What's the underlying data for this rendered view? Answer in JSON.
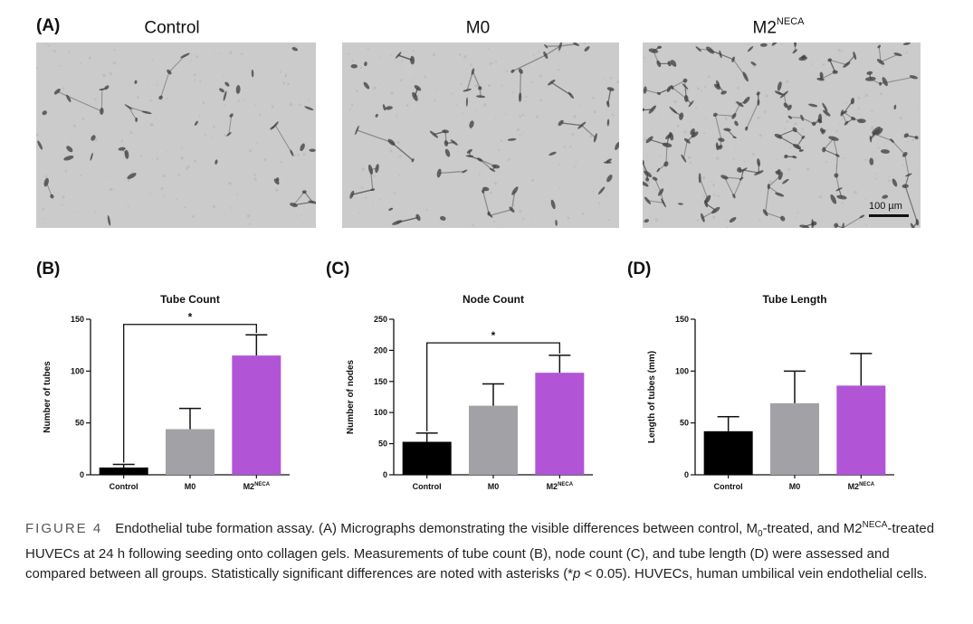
{
  "panel_a": {
    "letter": "(A)",
    "images": [
      {
        "title": "Control",
        "title_sup": ""
      },
      {
        "title": "M0",
        "title_sup": ""
      },
      {
        "title": "M2",
        "title_sup": "NECA"
      }
    ],
    "scale_bar": "100 µm"
  },
  "chart_data": [
    {
      "panel": "(B)",
      "type": "bar",
      "title": "Tube Count",
      "ylabel": "Number of tubes",
      "categories": [
        {
          "name": "Control",
          "sup": ""
        },
        {
          "name": "M0",
          "sup": ""
        },
        {
          "name": "M2",
          "sup": "NECA"
        }
      ],
      "values": [
        7,
        44,
        115
      ],
      "errors": [
        3,
        20,
        20
      ],
      "colors": [
        "#000000",
        "#a2a1a6",
        "#b155d6"
      ],
      "ylim": [
        0,
        150
      ],
      "yticks": [
        0,
        50,
        100,
        150
      ],
      "significance": {
        "from": 0,
        "to": 2,
        "label": "*",
        "at": 145
      }
    },
    {
      "panel": "(C)",
      "type": "bar",
      "title": "Node Count",
      "ylabel": "Number of nodes",
      "categories": [
        {
          "name": "Control",
          "sup": ""
        },
        {
          "name": "M0",
          "sup": ""
        },
        {
          "name": "M2",
          "sup": "NECA"
        }
      ],
      "values": [
        53,
        111,
        164
      ],
      "errors": [
        14,
        35,
        28
      ],
      "colors": [
        "#000000",
        "#a2a1a6",
        "#b155d6"
      ],
      "ylim": [
        0,
        250
      ],
      "yticks": [
        0,
        50,
        100,
        150,
        200,
        250
      ],
      "significance": {
        "from": 0,
        "to": 2,
        "label": "*",
        "at": 212
      }
    },
    {
      "panel": "(D)",
      "type": "bar",
      "title": "Tube Length",
      "ylabel": "Length of tubes (mm)",
      "categories": [
        {
          "name": "Control",
          "sup": ""
        },
        {
          "name": "M0",
          "sup": ""
        },
        {
          "name": "M2",
          "sup": "NECA"
        }
      ],
      "values": [
        42,
        69,
        86
      ],
      "errors": [
        14,
        31,
        31
      ],
      "colors": [
        "#000000",
        "#a2a1a6",
        "#b155d6"
      ],
      "ylim": [
        0,
        150
      ],
      "yticks": [
        0,
        50,
        100,
        150
      ],
      "significance": null
    }
  ],
  "caption": {
    "label": "FIGURE 4",
    "p1": "Endothelial tube formation assay. (A) Micrographs demonstrating the visible differences between control, M",
    "sub0": "0",
    "p2": "-treated, and M2",
    "sup1": "NECA",
    "p3": "-treated HUVECs at 24 h following seeding onto collagen gels. Measurements of tube count (B), node count (C), and tube length (D) were assessed and compared between all groups. Statistically significant differences are noted with asterisks (*",
    "p_italic": "p",
    "p4": " < 0.05). HUVECs, human umbilical vein endothelial cells."
  }
}
